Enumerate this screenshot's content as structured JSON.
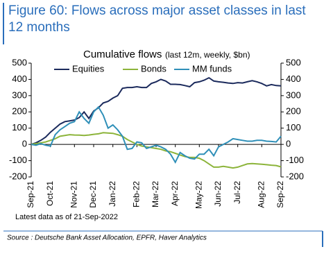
{
  "figure_title": "Figure 60: Flows across major asset classes in last 12 months",
  "note": "Latest data as of 21-Sep-2022",
  "source": "Source : Deutsche Bank Asset Allocation, EPFR, Haver Analytics",
  "chart_data": {
    "type": "line",
    "title": "Cumulative flows",
    "subtitle": "(last 12m, weekly, $bn)",
    "categories": [
      "Sep-21",
      null,
      null,
      null,
      "Oct-21",
      null,
      null,
      null,
      null,
      "Nov-21",
      null,
      null,
      null,
      "Dec-21",
      null,
      null,
      null,
      "Jan-22",
      null,
      null,
      null,
      null,
      "Feb-22",
      null,
      null,
      null,
      "Mar-22",
      null,
      null,
      null,
      "Apr-22",
      null,
      null,
      null,
      null,
      "May-22",
      null,
      null,
      null,
      "Jun-22",
      null,
      null,
      null,
      "Jul-22",
      null,
      null,
      null,
      null,
      "Aug-22",
      null,
      null,
      null,
      "Sep-22"
    ],
    "series": [
      {
        "name": "Equities",
        "color": "#1b2a5c",
        "values": [
          0,
          10,
          25,
          45,
          75,
          100,
          125,
          140,
          145,
          150,
          165,
          200,
          160,
          205,
          225,
          255,
          265,
          285,
          300,
          345,
          350,
          350,
          355,
          350,
          350,
          375,
          385,
          400,
          390,
          370,
          370,
          368,
          362,
          355,
          380,
          385,
          395,
          410,
          390,
          385,
          382,
          378,
          375,
          380,
          378,
          385,
          392,
          385,
          375,
          360,
          368,
          362,
          360
        ]
      },
      {
        "name": "Bonds",
        "color": "#8cb43a",
        "values": [
          0,
          5,
          10,
          15,
          25,
          35,
          50,
          55,
          60,
          58,
          57,
          55,
          58,
          62,
          65,
          72,
          70,
          68,
          60,
          50,
          30,
          15,
          0,
          -10,
          -15,
          -20,
          -25,
          -30,
          -40,
          -45,
          -55,
          -65,
          -75,
          -80,
          -80,
          -85,
          -100,
          -120,
          -140,
          -140,
          -135,
          -140,
          -145,
          -140,
          -130,
          -120,
          -118,
          -120,
          -122,
          -125,
          -128,
          -130,
          -138
        ]
      },
      {
        "name": "MM funds",
        "color": "#2e8fb8",
        "values": [
          0,
          -5,
          5,
          -5,
          -10,
          60,
          90,
          110,
          130,
          140,
          200,
          160,
          130,
          200,
          230,
          180,
          100,
          120,
          90,
          50,
          -30,
          -25,
          15,
          10,
          -25,
          -15,
          -5,
          -15,
          -30,
          -60,
          -110,
          -50,
          -70,
          -85,
          -90,
          -60,
          -60,
          -30,
          -70,
          -15,
          0,
          15,
          35,
          30,
          25,
          20,
          20,
          25,
          25,
          20,
          18,
          15,
          50
        ]
      }
    ],
    "ylim": [
      -200,
      500
    ],
    "yticks": [
      -200,
      -100,
      0,
      100,
      200,
      300,
      400,
      500
    ],
    "y2lim": [
      -200,
      500
    ],
    "y2ticks": [
      -200,
      -100,
      0,
      100,
      200,
      300,
      400,
      500
    ]
  }
}
